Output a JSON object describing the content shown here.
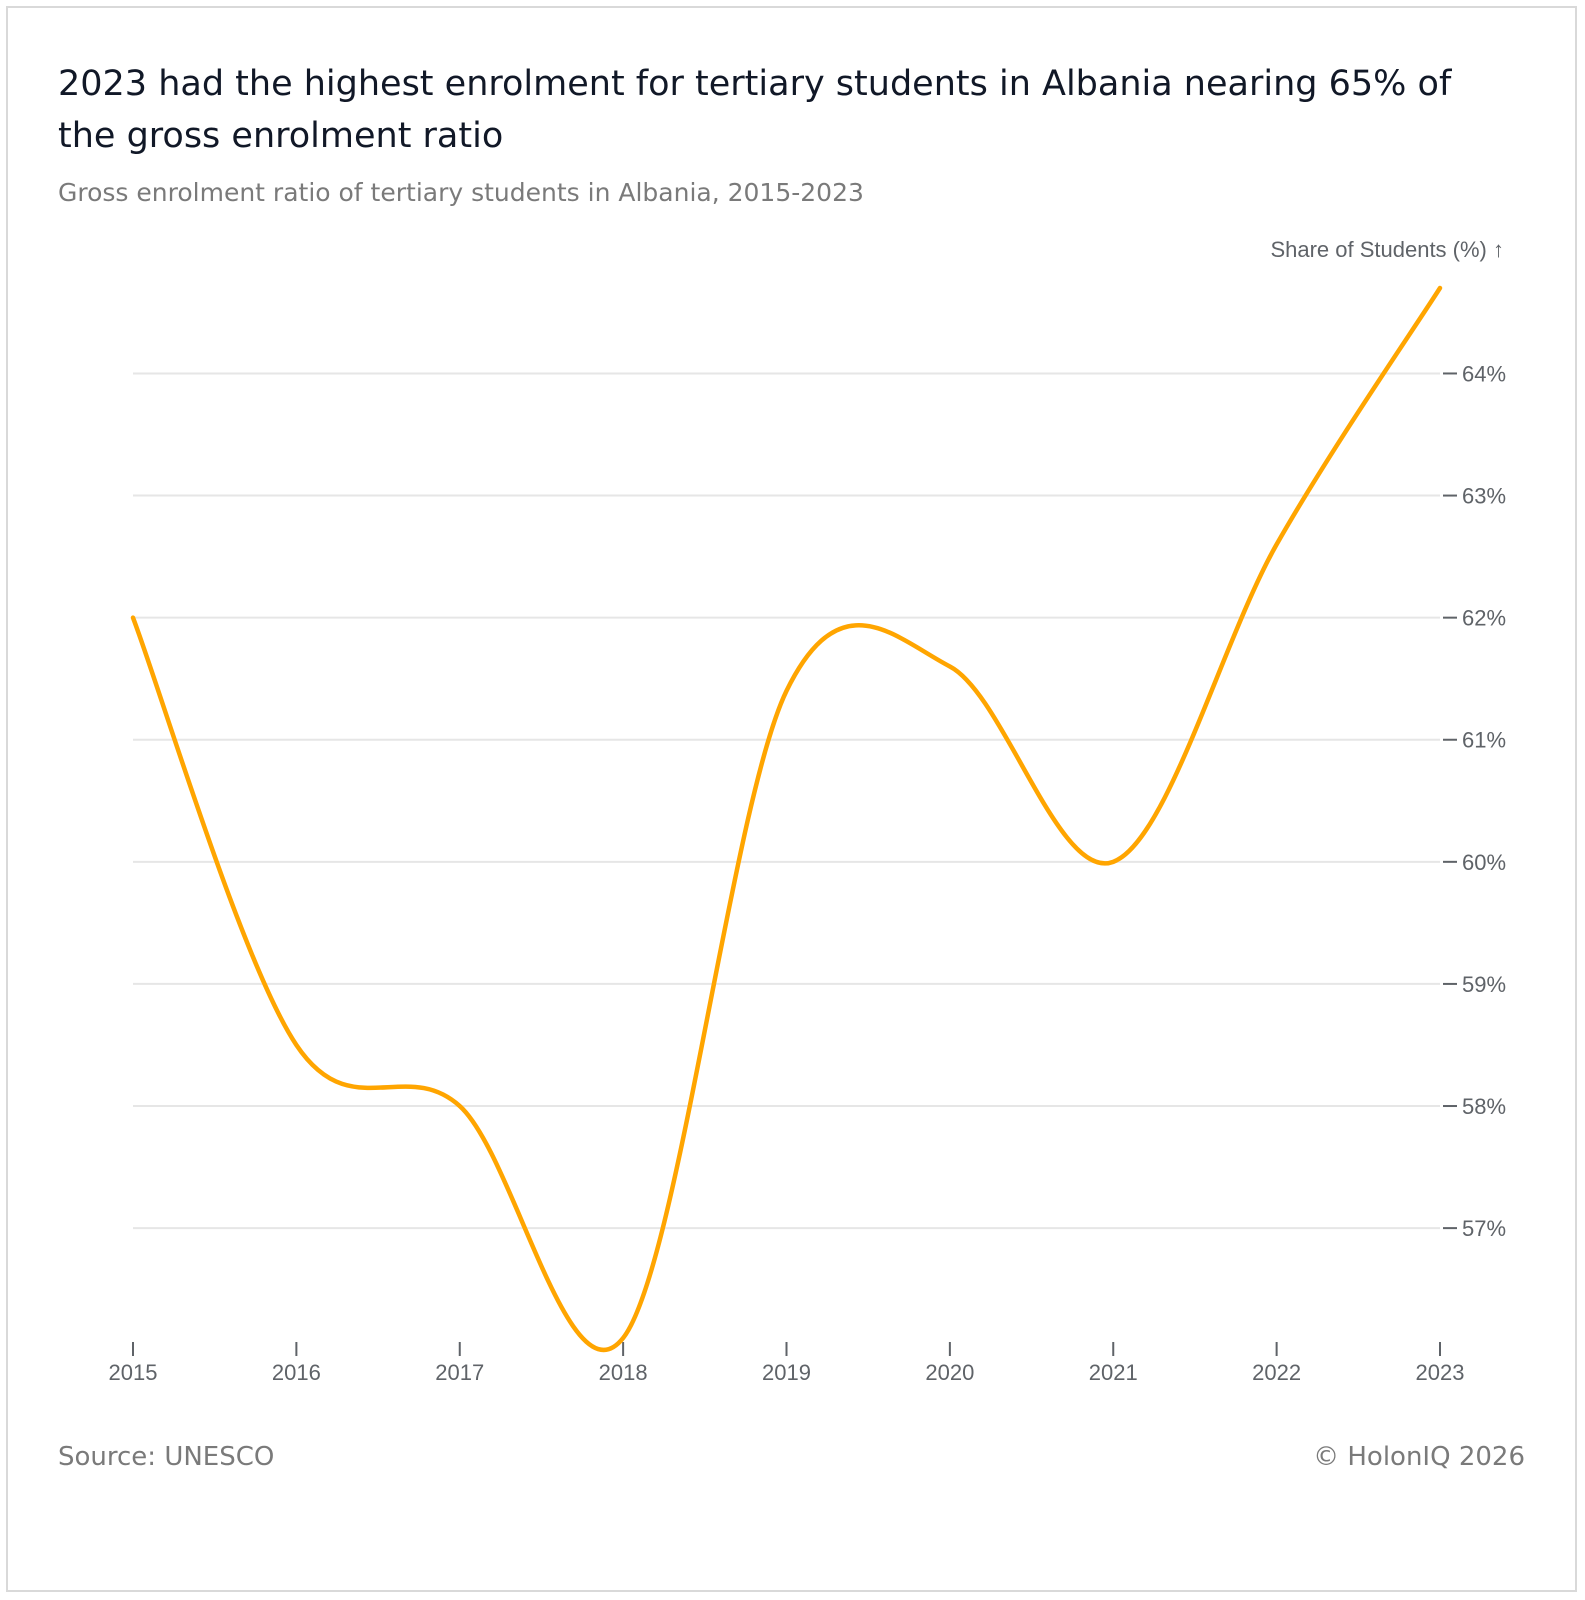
{
  "title": "2023 had the highest enrolment for tertiary students in Albania nearing 65% of the gross enrolment ratio",
  "subtitle": "Gross enrolment ratio of tertiary students in Albania, 2015-2023",
  "source": "Source: UNESCO",
  "copyright": "© HolonIQ 2026",
  "colors": {
    "line": "#FFA500",
    "grid": "#e6e6e6",
    "text": "#5f6368"
  },
  "chart_data": {
    "type": "line",
    "title": "2023 had the highest enrolment for tertiary students in Albania nearing 65% of the gross enrolment ratio",
    "ylabel": "Share of Students (%) ↑",
    "xlabel": "",
    "categories": [
      "2015",
      "2016",
      "2017",
      "2018",
      "2019",
      "2020",
      "2021",
      "2022",
      "2023"
    ],
    "series": [
      {
        "name": "Gross enrolment ratio",
        "values": [
          62.0,
          58.5,
          58.0,
          56.1,
          61.4,
          61.6,
          60.0,
          62.6,
          64.7
        ]
      }
    ],
    "yticks": [
      57,
      58,
      59,
      60,
      61,
      62,
      63,
      64
    ],
    "ytick_labels": [
      "57%",
      "58%",
      "59%",
      "60%",
      "61%",
      "62%",
      "63%",
      "64%"
    ],
    "ylim": [
      56.1,
      64.7
    ],
    "grid": true,
    "legend": "none"
  }
}
